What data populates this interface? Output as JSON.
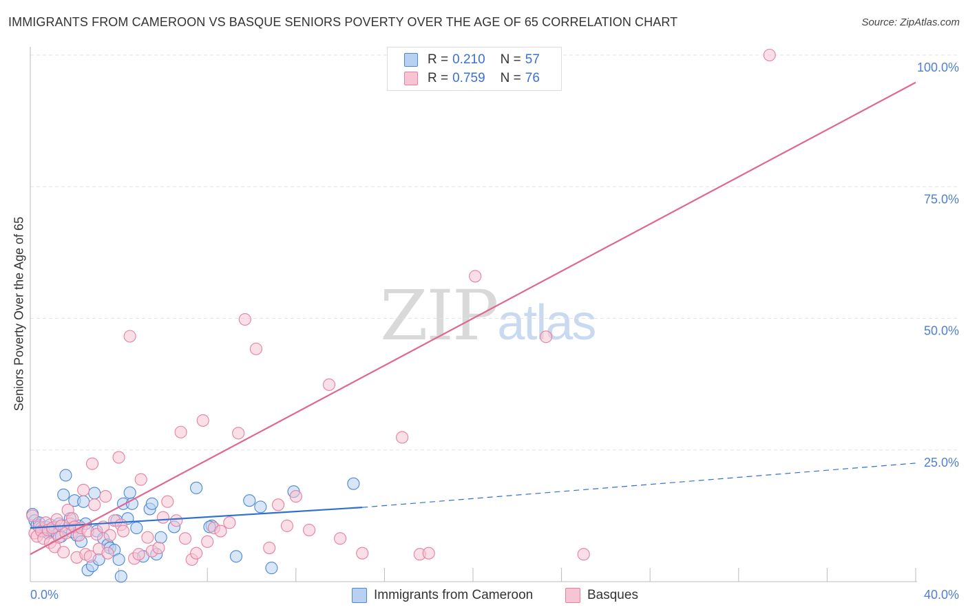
{
  "header": {
    "title": "IMMIGRANTS FROM CAMEROON VS BASQUE SENIORS POVERTY OVER THE AGE OF 65 CORRELATION CHART",
    "source": "Source: ZipAtlas.com"
  },
  "watermark": {
    "zip": "ZIP",
    "atlas": "atlas"
  },
  "legend": {
    "series1": {
      "r_label": "R = ",
      "r_value": "0.210",
      "n_label": "N = ",
      "n_value": "57"
    },
    "series2": {
      "r_label": "R = ",
      "r_value": "0.759",
      "n_label": "N = ",
      "n_value": "76"
    }
  },
  "bottom_legend": {
    "series1": "Immigrants from Cameroon",
    "series2": "Basques"
  },
  "colors": {
    "blue_fill": "#b8d1f3",
    "blue_stroke": "#4a86d8",
    "blue_line": "#2f6fd0",
    "pink_fill": "#f7c4d4",
    "pink_stroke": "#e67fa0",
    "pink_line": "#e0668f",
    "tick_text": "#4f7fd0",
    "grid": "#e3e3e3"
  },
  "chart_data": {
    "type": "scatter",
    "title": "IMMIGRANTS FROM CAMEROON VS BASQUE SENIORS POVERTY OVER THE AGE OF 65 CORRELATION CHART",
    "xlabel": "",
    "ylabel": "Seniors Poverty Over the Age of 65",
    "xlim": [
      0,
      40
    ],
    "ylim": [
      0,
      100
    ],
    "x_tick_labels": [
      "0.0%",
      "40.0%"
    ],
    "y_ticks": [
      25,
      50,
      75,
      100
    ],
    "y_tick_labels": [
      "25.0%",
      "50.0%",
      "75.0%",
      "100.0%"
    ],
    "grid": true,
    "legend": "top-center",
    "series": [
      {
        "name": "Immigrants from Cameroon",
        "color": "#4a86d8",
        "r": 0.21,
        "n": 57,
        "trend": {
          "x": [
            0,
            15
          ],
          "y": [
            10.2,
            14.1
          ],
          "dashed_to": [
            40,
            22.5
          ]
        },
        "points": [
          [
            0.1,
            12.8
          ],
          [
            0.2,
            11.6
          ],
          [
            0.3,
            10.8
          ],
          [
            0.4,
            11.2
          ],
          [
            0.5,
            10.2
          ],
          [
            0.6,
            9.6
          ],
          [
            0.7,
            10.4
          ],
          [
            0.8,
            9.2
          ],
          [
            0.9,
            10.8
          ],
          [
            1.0,
            9.8
          ],
          [
            1.1,
            10.4
          ],
          [
            1.2,
            9.0
          ],
          [
            1.3,
            11.0
          ],
          [
            1.4,
            8.6
          ],
          [
            1.5,
            16.5
          ],
          [
            1.6,
            20.2
          ],
          [
            1.7,
            10.2
          ],
          [
            1.8,
            12.0
          ],
          [
            1.9,
            9.4
          ],
          [
            2.0,
            15.4
          ],
          [
            2.1,
            8.8
          ],
          [
            2.2,
            10.6
          ],
          [
            2.3,
            7.6
          ],
          [
            2.4,
            15.2
          ],
          [
            2.5,
            11.0
          ],
          [
            2.6,
            2.2
          ],
          [
            2.8,
            3.0
          ],
          [
            2.9,
            16.8
          ],
          [
            3.0,
            9.6
          ],
          [
            3.1,
            4.2
          ],
          [
            3.3,
            8.2
          ],
          [
            3.5,
            7.0
          ],
          [
            3.6,
            6.4
          ],
          [
            3.8,
            6.0
          ],
          [
            3.9,
            11.6
          ],
          [
            4.0,
            4.2
          ],
          [
            4.1,
            1.0
          ],
          [
            4.2,
            14.8
          ],
          [
            4.4,
            12.0
          ],
          [
            4.5,
            16.9
          ],
          [
            4.6,
            14.8
          ],
          [
            4.8,
            10.2
          ],
          [
            5.1,
            4.8
          ],
          [
            5.4,
            13.8
          ],
          [
            5.5,
            14.8
          ],
          [
            5.7,
            5.2
          ],
          [
            5.9,
            8.4
          ],
          [
            6.5,
            10.4
          ],
          [
            7.5,
            17.8
          ],
          [
            8.2,
            10.6
          ],
          [
            8.1,
            10.4
          ],
          [
            9.3,
            4.8
          ],
          [
            9.9,
            15.4
          ],
          [
            10.4,
            14.2
          ],
          [
            10.9,
            2.6
          ],
          [
            11.9,
            17.1
          ],
          [
            14.6,
            18.6
          ]
        ]
      },
      {
        "name": "Basques",
        "color": "#e67fa0",
        "r": 0.759,
        "n": 76,
        "trend": {
          "x": [
            0,
            40
          ],
          "y": [
            5.2,
            94.8
          ]
        },
        "points": [
          [
            0.1,
            12.5
          ],
          [
            0.2,
            9.2
          ],
          [
            0.3,
            8.6
          ],
          [
            0.4,
            10.4
          ],
          [
            0.5,
            9.6
          ],
          [
            0.6,
            8.2
          ],
          [
            0.7,
            11.2
          ],
          [
            0.8,
            9.8
          ],
          [
            0.9,
            7.4
          ],
          [
            1.0,
            10.2
          ],
          [
            1.1,
            6.6
          ],
          [
            1.2,
            11.8
          ],
          [
            1.3,
            8.4
          ],
          [
            1.4,
            10.6
          ],
          [
            1.5,
            5.6
          ],
          [
            1.6,
            9.2
          ],
          [
            1.7,
            13.6
          ],
          [
            1.8,
            11.0
          ],
          [
            1.9,
            12.0
          ],
          [
            2.0,
            10.4
          ],
          [
            2.1,
            4.6
          ],
          [
            2.2,
            8.8
          ],
          [
            2.3,
            10.2
          ],
          [
            2.4,
            17.4
          ],
          [
            2.5,
            5.2
          ],
          [
            2.6,
            9.6
          ],
          [
            2.7,
            4.8
          ],
          [
            2.8,
            22.4
          ],
          [
            2.9,
            14.6
          ],
          [
            3.0,
            9.0
          ],
          [
            3.1,
            6.2
          ],
          [
            3.3,
            10.4
          ],
          [
            3.4,
            16.2
          ],
          [
            3.5,
            5.4
          ],
          [
            3.6,
            8.8
          ],
          [
            3.8,
            11.6
          ],
          [
            4.0,
            23.6
          ],
          [
            4.1,
            10.8
          ],
          [
            4.2,
            9.6
          ],
          [
            4.5,
            46.6
          ],
          [
            4.7,
            4.4
          ],
          [
            4.9,
            5.2
          ],
          [
            5.0,
            19.4
          ],
          [
            5.3,
            8.4
          ],
          [
            5.5,
            5.8
          ],
          [
            5.8,
            6.4
          ],
          [
            6.0,
            12.2
          ],
          [
            6.2,
            15.2
          ],
          [
            6.6,
            11.6
          ],
          [
            6.8,
            28.4
          ],
          [
            7.0,
            8.2
          ],
          [
            7.3,
            4.2
          ],
          [
            7.5,
            5.4
          ],
          [
            7.8,
            30.6
          ],
          [
            8.0,
            7.6
          ],
          [
            8.3,
            10.2
          ],
          [
            8.6,
            9.6
          ],
          [
            9.0,
            11.2
          ],
          [
            9.4,
            28.2
          ],
          [
            9.7,
            49.8
          ],
          [
            10.2,
            44.2
          ],
          [
            10.8,
            6.4
          ],
          [
            11.2,
            14.6
          ],
          [
            11.6,
            10.6
          ],
          [
            12.0,
            16.2
          ],
          [
            12.6,
            9.8
          ],
          [
            13.5,
            37.4
          ],
          [
            14.0,
            8.2
          ],
          [
            15.0,
            5.4
          ],
          [
            16.8,
            27.4
          ],
          [
            17.6,
            5.2
          ],
          [
            18.0,
            5.4
          ],
          [
            20.1,
            58.0
          ],
          [
            23.3,
            46.5
          ],
          [
            25.0,
            5.2
          ],
          [
            33.4,
            100.0
          ]
        ]
      }
    ]
  }
}
